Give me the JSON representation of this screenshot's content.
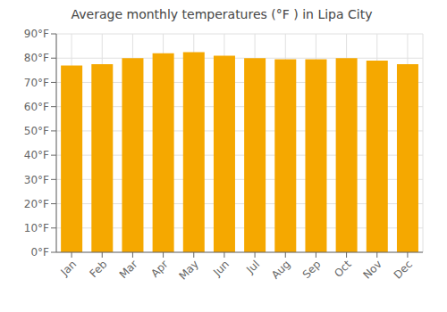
{
  "chart_data": {
    "type": "bar",
    "title": "Average monthly temperatures (°F ) in Lipa City",
    "categories": [
      "Jan",
      "Feb",
      "Mar",
      "Apr",
      "May",
      "Jun",
      "Jul",
      "Aug",
      "Sep",
      "Oct",
      "Nov",
      "Dec"
    ],
    "values": [
      77,
      77.5,
      80,
      82,
      82.5,
      81,
      80,
      79.5,
      79.5,
      80,
      79,
      77.5
    ],
    "color": "#F5A800",
    "ylim": [
      0,
      90
    ],
    "yticks": [
      {
        "value": 0,
        "label": "0°F"
      },
      {
        "value": 10,
        "label": "10°F"
      },
      {
        "value": 20,
        "label": "20°F"
      },
      {
        "value": 30,
        "label": "30°F"
      },
      {
        "value": 40,
        "label": "40°F"
      },
      {
        "value": 50,
        "label": "50°F"
      },
      {
        "value": 60,
        "label": "60°F"
      },
      {
        "value": 70,
        "label": "70°F"
      },
      {
        "value": 80,
        "label": "80°F"
      },
      {
        "value": 90,
        "label": "90°F"
      }
    ],
    "grid": true
  }
}
